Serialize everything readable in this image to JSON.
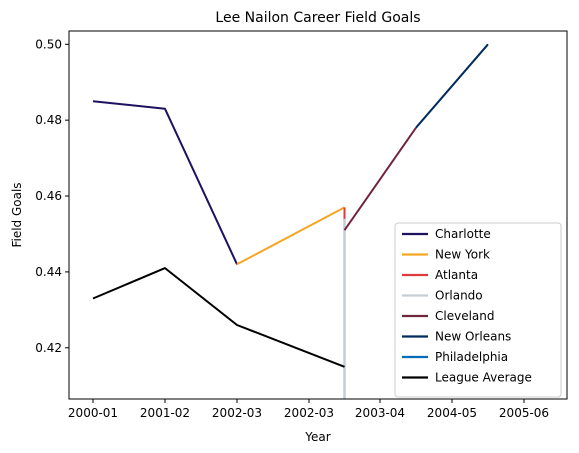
{
  "chart_data": {
    "type": "line",
    "title": "Lee Nailon Career Field Goals",
    "xlabel": "Year",
    "ylabel": "Field Goals",
    "x_ticks": [
      "2000-01",
      "2001-02",
      "2002-03",
      "2002-03",
      "2003-04",
      "2004-05",
      "2005-06"
    ],
    "y_ticks": [
      "0.42",
      "0.44",
      "0.46",
      "0.48",
      "0.50"
    ],
    "ylim": [
      0.4065,
      0.5035
    ],
    "grid": false,
    "legend_position": "lower-right",
    "series": [
      {
        "name": "Charlotte",
        "color": "#1d1160",
        "points": [
          [
            0,
            0.485
          ],
          [
            1,
            0.483
          ],
          [
            2,
            0.442
          ]
        ]
      },
      {
        "name": "New York",
        "color": "#f5a623",
        "points": [
          [
            2,
            0.442
          ],
          [
            3.5,
            0.457
          ]
        ]
      },
      {
        "name": "Atlanta",
        "color": "#e03a3e",
        "points": [
          [
            3.5,
            0.457
          ],
          [
            3.5,
            0.451
          ]
        ]
      },
      {
        "name": "Orlando",
        "color": "#c4ced4",
        "points": [
          [
            3.5,
            0.4065
          ],
          [
            3.5,
            0.454
          ]
        ]
      },
      {
        "name": "Cleveland",
        "color": "#6f263d",
        "points": [
          [
            3.5,
            0.451
          ],
          [
            4.5,
            0.478
          ]
        ]
      },
      {
        "name": "New Orleans",
        "color": "#002b5c",
        "points": [
          [
            4.5,
            0.478
          ],
          [
            5.5,
            0.5
          ]
        ]
      },
      {
        "name": "Philadelphia",
        "color": "#006bb6",
        "points": []
      },
      {
        "name": "League Average",
        "color": "#000000",
        "points": [
          [
            0,
            0.433
          ],
          [
            1,
            0.441
          ],
          [
            2,
            0.426
          ],
          [
            3.5,
            0.415
          ]
        ]
      }
    ]
  }
}
